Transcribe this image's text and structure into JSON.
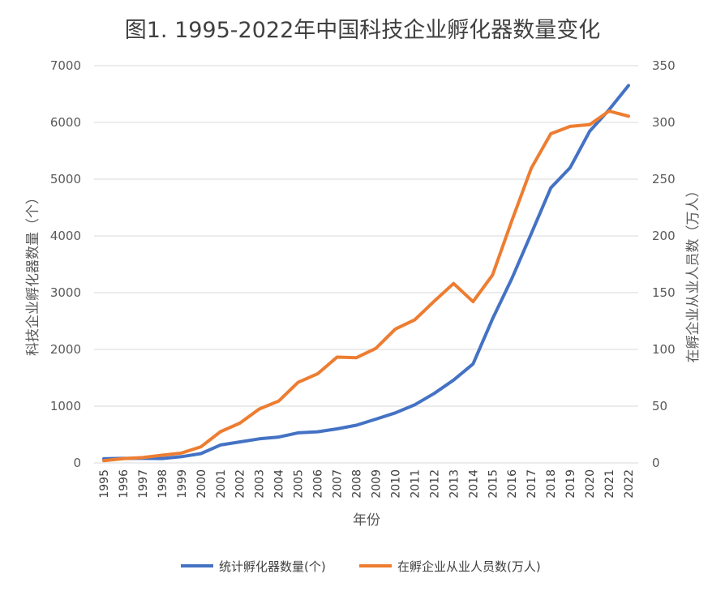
{
  "chart_data": {
    "type": "line",
    "title": "图1. 1995-2022年中国科技企业孵化器数量变化",
    "xlabel": "年份",
    "ylabel_left": "科技企业孵化器数量（个）",
    "ylabel_right": "在孵企业从业人员数（万人）",
    "ylim_left": [
      0,
      7000
    ],
    "ylim_right": [
      0,
      350
    ],
    "yticks_left": [
      "0",
      "1000",
      "2000",
      "3000",
      "4000",
      "5000",
      "6000",
      "7000"
    ],
    "yticks_right": [
      "0",
      "50",
      "100",
      "150",
      "200",
      "250",
      "300",
      "350"
    ],
    "grid": true,
    "legend_position": "bottom",
    "categories": [
      "1995",
      "1996",
      "1997",
      "1998",
      "1999",
      "2000",
      "2001",
      "2002",
      "2003",
      "2004",
      "2005",
      "2006",
      "2007",
      "2008",
      "2009",
      "2010",
      "2011",
      "2012",
      "2013",
      "2014",
      "2015",
      "2016",
      "2017",
      "2018",
      "2019",
      "2020",
      "2021",
      "2022"
    ],
    "series": [
      {
        "name": "统计孵化器数量(个)",
        "axis": "left",
        "color": "#4472c4",
        "values": [
          73,
          80,
          80,
          77,
          110,
          164,
          316,
          370,
          425,
          455,
          530,
          548,
          600,
          665,
          772,
          882,
          1025,
          1225,
          1460,
          1745,
          2537,
          3250,
          4045,
          4845,
          5205,
          5845,
          6225,
          6650
        ]
      },
      {
        "name": "在孵企业从业人员数(万人)",
        "axis": "right",
        "color": "#ed7d31",
        "values": [
          2,
          3.8,
          4.7,
          6.8,
          8.7,
          14.2,
          27.5,
          35,
          47.5,
          54.5,
          71,
          78.5,
          93.2,
          92.7,
          100.9,
          117.9,
          126.1,
          142.4,
          158.1,
          142.1,
          165.5,
          213.5,
          259.8,
          290,
          296.5,
          298,
          310,
          305.5
        ]
      }
    ]
  }
}
